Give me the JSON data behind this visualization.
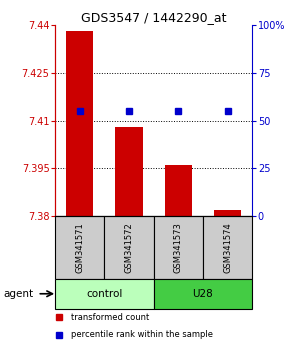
{
  "title": "GDS3547 / 1442290_at",
  "samples": [
    "GSM341571",
    "GSM341572",
    "GSM341573",
    "GSM341574"
  ],
  "bar_values": [
    7.438,
    7.408,
    7.396,
    7.382
  ],
  "bar_base": 7.38,
  "percentile_values": [
    7.413,
    7.413,
    7.413,
    7.413
  ],
  "ylim_left": [
    7.38,
    7.44
  ],
  "ylim_right": [
    0,
    100
  ],
  "yticks_left": [
    7.38,
    7.395,
    7.41,
    7.425,
    7.44
  ],
  "yticks_right": [
    0,
    25,
    50,
    75,
    100
  ],
  "ytick_labels_left": [
    "7.38",
    "7.395",
    "7.41",
    "7.425",
    "7.44"
  ],
  "ytick_labels_right": [
    "0",
    "25",
    "50",
    "75",
    "100%"
  ],
  "bar_color": "#cc0000",
  "percentile_color": "#0000cc",
  "groups": [
    {
      "label": "control",
      "samples": [
        0,
        1
      ],
      "color": "#bbffbb"
    },
    {
      "label": "U28",
      "samples": [
        2,
        3
      ],
      "color": "#44cc44"
    }
  ],
  "left_axis_color": "#cc0000",
  "right_axis_color": "#0000cc",
  "legend_red_label": "transformed count",
  "legend_blue_label": "percentile rank within the sample",
  "agent_label": "agent",
  "background_sample_box": "#cccccc",
  "bar_width": 0.55
}
